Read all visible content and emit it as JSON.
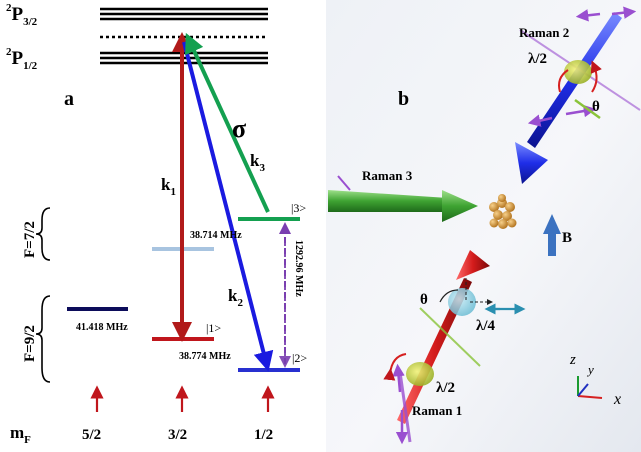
{
  "panel_a": {
    "label": "a",
    "states": {
      "p32_super": "2",
      "p32_base": "P",
      "p32_sub": "3/2",
      "p12_super": "2",
      "p12_base": "P",
      "p12_sub": "1/2"
    },
    "manifolds": {
      "f72": "F=7/2",
      "f92": "F=9/2"
    },
    "beams": {
      "k1_base": "k",
      "k1_sub": "1",
      "k2_base": "k",
      "k2_sub": "2",
      "k3_base": "k",
      "k3_sub": "3",
      "sigma": "σ"
    },
    "kets": {
      "ket1": "|1>",
      "ket2": "|2>",
      "ket3": "|3>"
    },
    "frequencies": {
      "f1": "38.714 MHz",
      "f2": "41.418 MHz",
      "f3": "38.774 MHz",
      "f4": "1292.96 MHz"
    },
    "mf_axis": {
      "label_base": "m",
      "label_sub": "F",
      "values": [
        "5/2",
        "3/2",
        "1/2"
      ]
    },
    "colors": {
      "k1": "#b11a1a",
      "k2": "#1a1ae0",
      "k3": "#14a050",
      "dashed": "#7a3fb0",
      "level_navy": "#0c0c5a",
      "level_red": "#c0161c",
      "level_blue": "#2830d0",
      "level_lightblue": "#a8c4e0",
      "level_green": "#14a050"
    }
  },
  "panel_b": {
    "label": "b",
    "raman1": "Raman 1",
    "raman2": "Raman 2",
    "raman3": "Raman 3",
    "half_wave_top": "λ/2",
    "half_wave_bottom": "λ/2",
    "quarter_wave": "λ/4",
    "theta_top": "θ",
    "theta_bottom": "θ",
    "field": "B",
    "axis_z": "z",
    "axis_y": "y",
    "axis_x": "x"
  }
}
